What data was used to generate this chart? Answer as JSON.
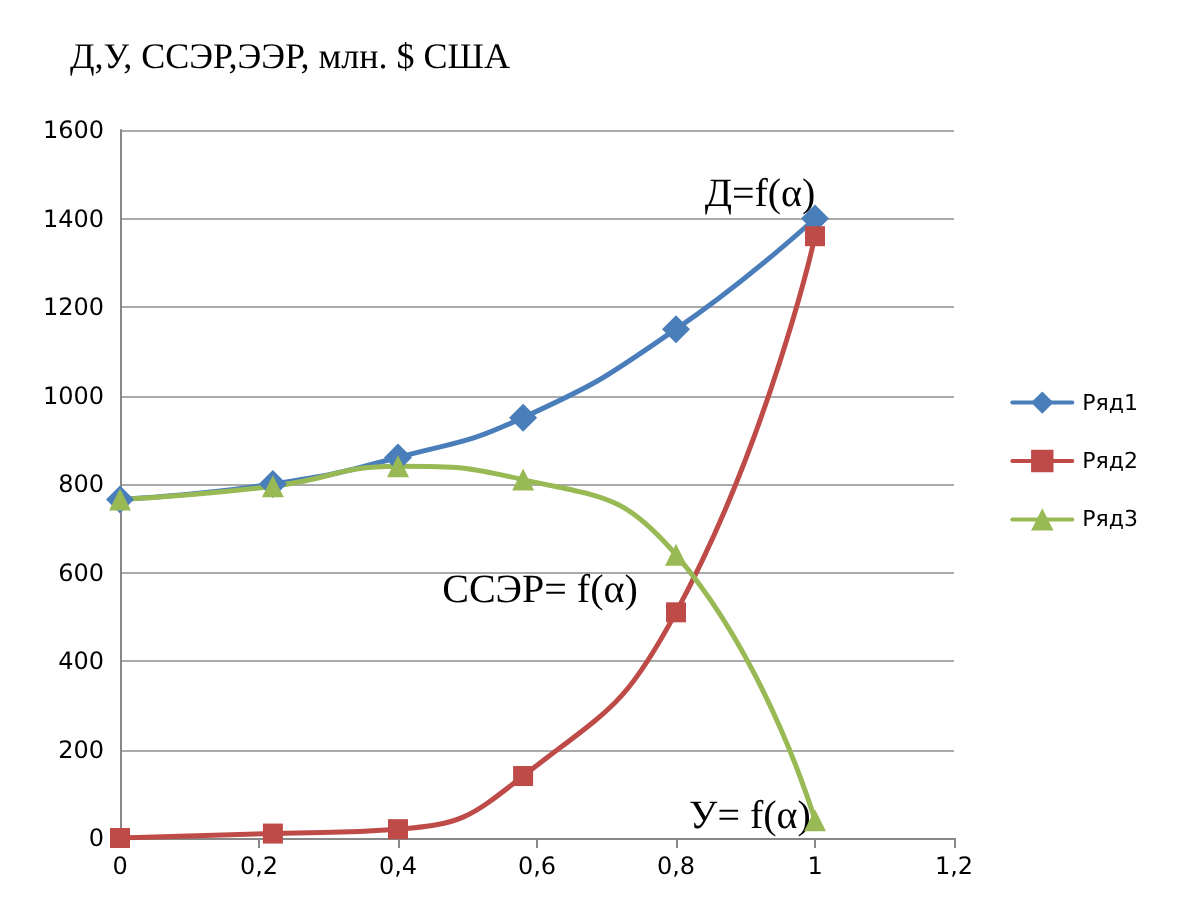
{
  "chart_data": {
    "type": "line",
    "title": "Д,У, ССЭР,ЭЭР, млн. $ США",
    "x": [
      0,
      0.22,
      0.4,
      0.58,
      0.8,
      1
    ],
    "series": [
      {
        "name": "Ряд1",
        "color": "#4a7ebb",
        "marker": "diamond",
        "values": [
          765,
          800,
          860,
          950,
          1150,
          1400
        ]
      },
      {
        "name": "Ряд2",
        "color": "#be4b48",
        "marker": "square",
        "values": [
          0,
          10,
          20,
          140,
          510,
          1360
        ]
      },
      {
        "name": "Ряд3",
        "color": "#98b954",
        "marker": "triangle",
        "values": [
          765,
          795,
          840,
          810,
          640,
          40
        ]
      }
    ],
    "xlim": [
      0,
      1.2
    ],
    "xticks": [
      0,
      {
        "value": 0.2,
        "label": "0,2"
      },
      {
        "value": 0.4,
        "label": "0,4"
      },
      {
        "value": 0.6,
        "label": "0,6"
      },
      {
        "value": 0.8,
        "label": "0,8"
      },
      1,
      {
        "value": 1.2,
        "label": "1,2"
      }
    ],
    "ylim": [
      0,
      1600
    ],
    "yticks": [
      0,
      200,
      400,
      600,
      800,
      1000,
      1200,
      1400,
      1600
    ],
    "grid": "y",
    "legend": "right",
    "annotations": [
      "Д=f(α)",
      "ССЭР= f(α)",
      "У= f(α)"
    ]
  }
}
